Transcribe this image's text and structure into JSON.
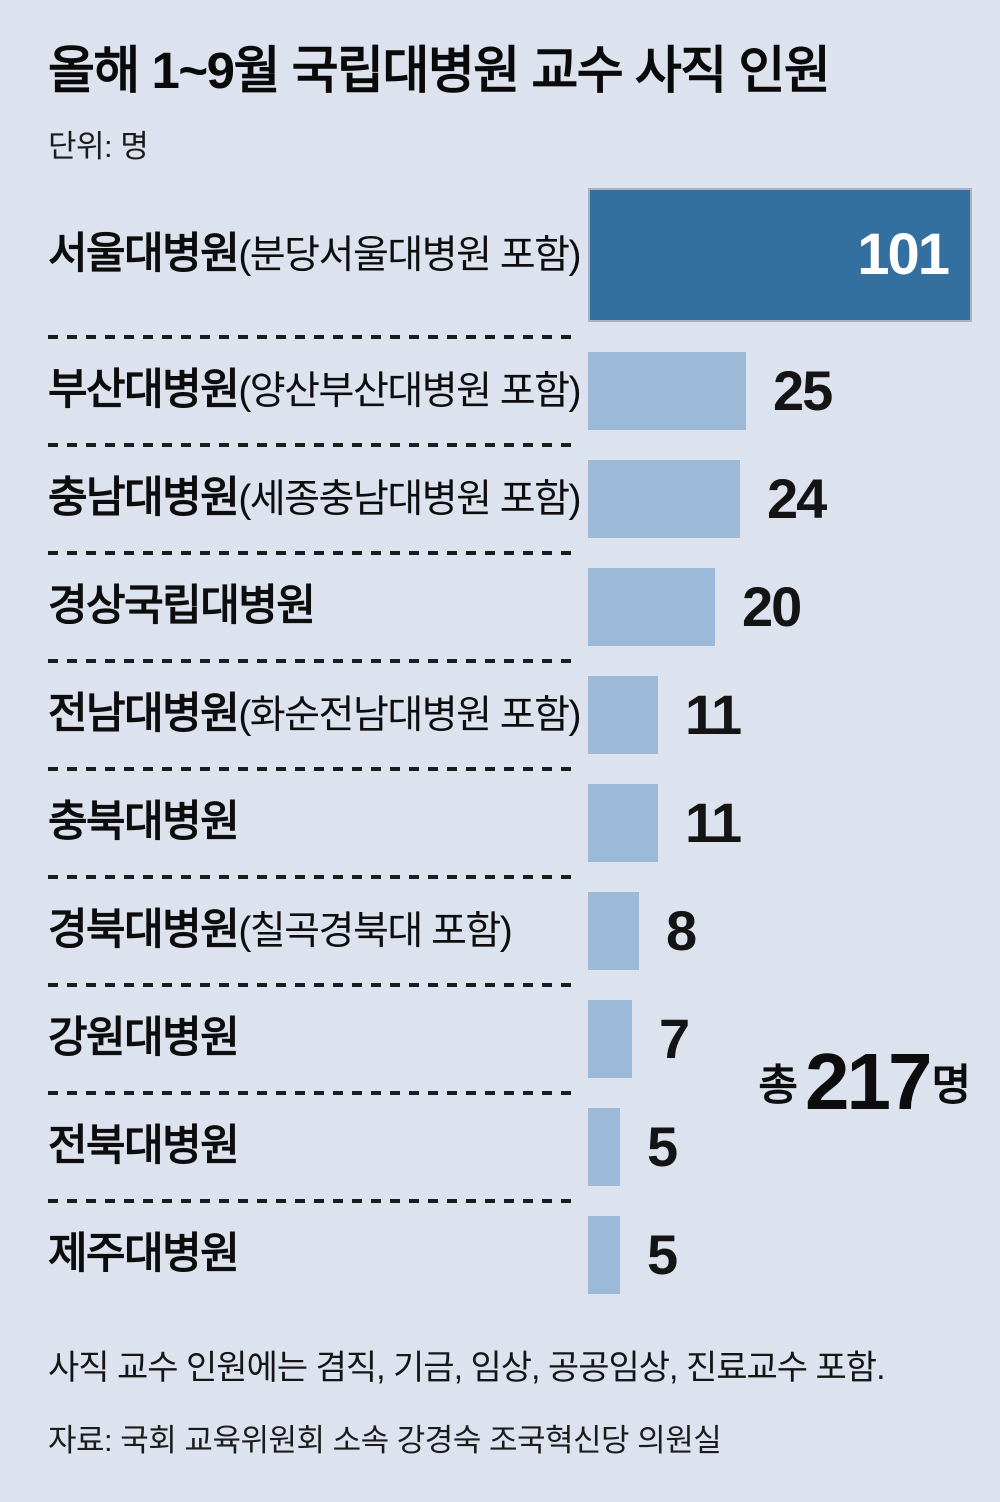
{
  "title": "올해 1~9월 국립대병원 교수 사직 인원",
  "unit_label": "단위: 명",
  "total": {
    "prefix": "총",
    "value": "217",
    "suffix": "명"
  },
  "note": "사직 교수 인원에는 겸직, 기금, 임상, 공공임상, 진료교수 포함.",
  "source": "자료: 국회 교육위원회 소속 강경숙 조국혁신당 의원실",
  "colors": {
    "background": "#dce2ee",
    "bar": "#9cbad8",
    "bar_highlight": "#33709f",
    "text": "#0d0d0d",
    "value_inside_text": "#ffffff"
  },
  "chart_data": {
    "type": "bar",
    "orientation": "horizontal",
    "title": "올해 1~9월 국립대병원 교수 사직 인원",
    "unit": "명",
    "total": 217,
    "legend": "none",
    "grid": "off",
    "categories": [
      "서울대병원(분당서울대병원 포함)",
      "부산대병원(양산부산대병원 포함)",
      "충남대병원(세종충남대병원 포함)",
      "경상국립대병원",
      "전남대병원(화순전남대병원 포함)",
      "충북대병원",
      "경북대병원(칠곡경북대 포함)",
      "강원대병원",
      "전북대병원",
      "제주대병원"
    ],
    "values": [
      101,
      25,
      24,
      20,
      11,
      11,
      8,
      7,
      5,
      5
    ],
    "bars": [
      {
        "name": "서울대병원",
        "note": "(분당서울대병원 포함)",
        "value": 101,
        "highlight": true,
        "value_inside": true
      },
      {
        "name": "부산대병원",
        "note": "(양산부산대병원 포함)",
        "value": 25,
        "highlight": false,
        "value_inside": false
      },
      {
        "name": "충남대병원",
        "note": "(세종충남대병원 포함)",
        "value": 24,
        "highlight": false,
        "value_inside": false
      },
      {
        "name": "경상국립대병원",
        "note": "",
        "value": 20,
        "highlight": false,
        "value_inside": false
      },
      {
        "name": "전남대병원",
        "note": "(화순전남대병원 포함)",
        "value": 11,
        "highlight": false,
        "value_inside": false
      },
      {
        "name": "충북대병원",
        "note": "",
        "value": 11,
        "highlight": false,
        "value_inside": false
      },
      {
        "name": "경북대병원",
        "note": "(칠곡경북대 포함)",
        "value": 8,
        "highlight": false,
        "value_inside": false
      },
      {
        "name": "강원대병원",
        "note": "",
        "value": 7,
        "highlight": false,
        "value_inside": false
      },
      {
        "name": "전북대병원",
        "note": "",
        "value": 5,
        "highlight": false,
        "value_inside": false
      },
      {
        "name": "제주대병원",
        "note": "",
        "value": 5,
        "highlight": false,
        "value_inside": false
      }
    ]
  }
}
